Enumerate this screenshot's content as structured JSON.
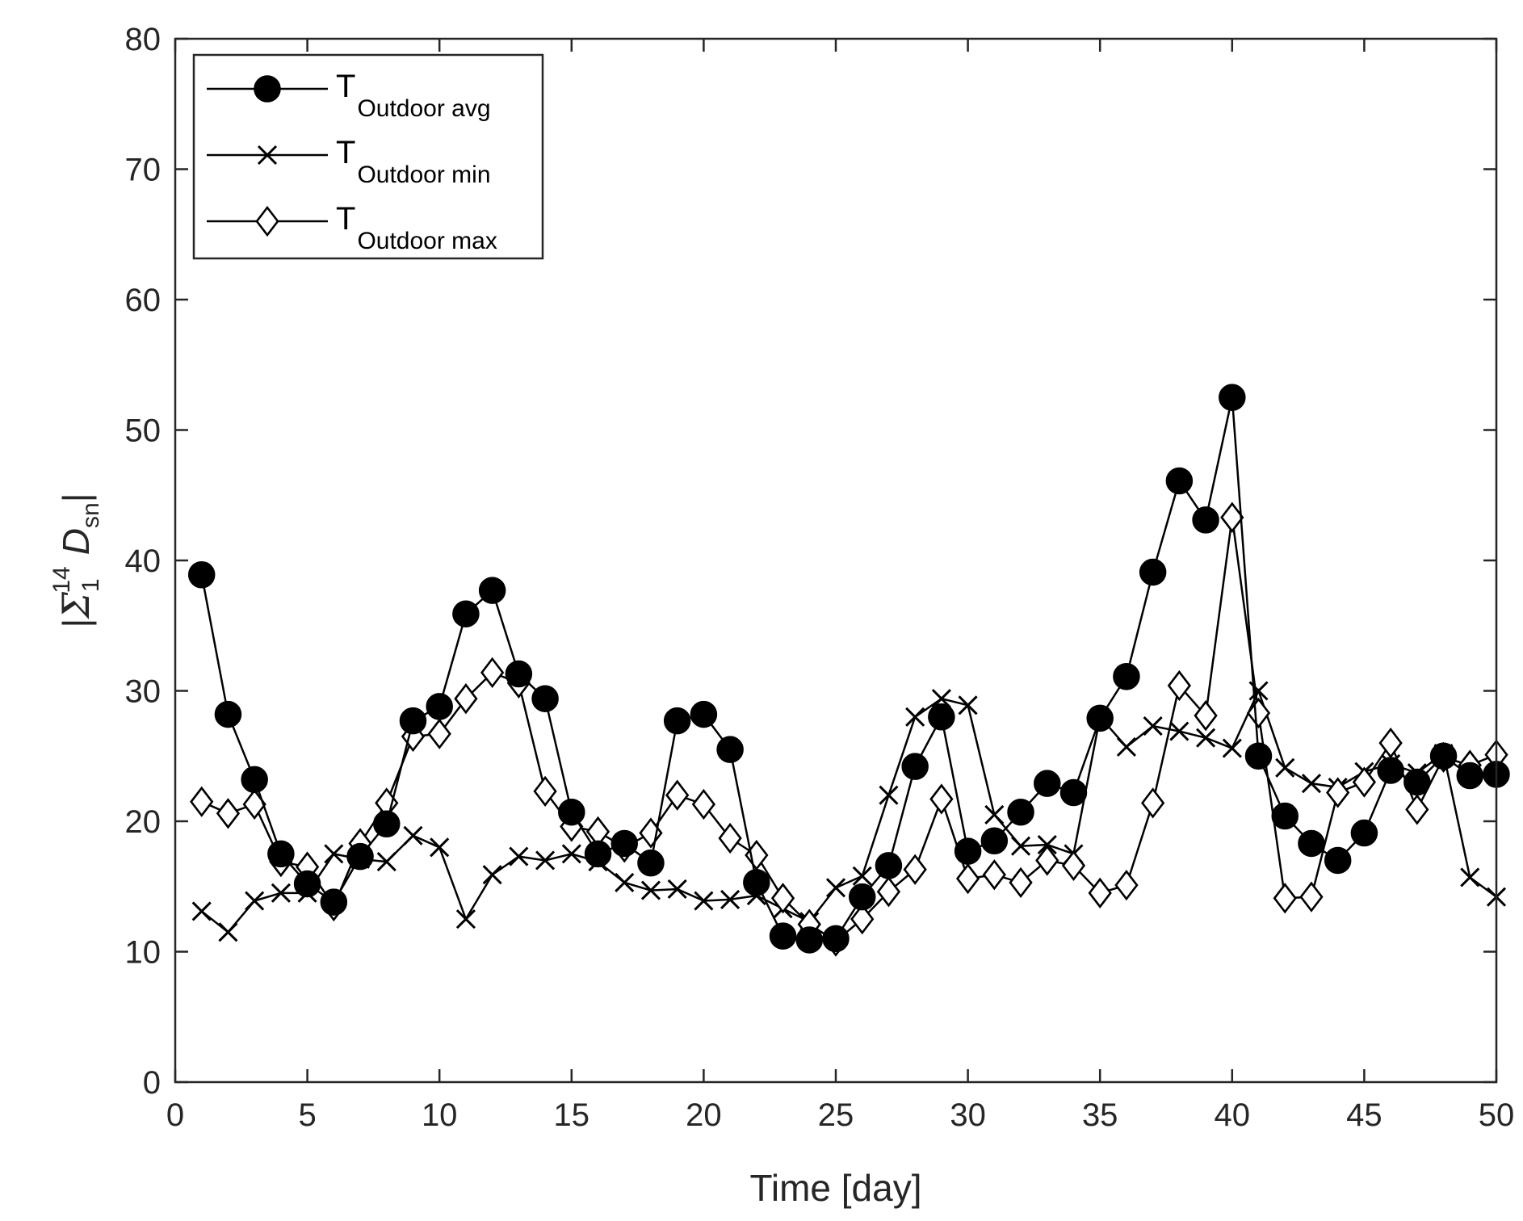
{
  "chart_data": {
    "type": "line",
    "title": "",
    "xlabel": "Time [day]",
    "ylabel_parts": {
      "bar_left": "|",
      "sigma": "Σ",
      "sub": "1",
      "sup": "14",
      "var": "D",
      "var_sub": "sn",
      "bar_right": "|"
    },
    "xlim": [
      0,
      50
    ],
    "ylim": [
      0,
      80
    ],
    "xticks": [
      0,
      5,
      10,
      15,
      20,
      25,
      30,
      35,
      40,
      45,
      50
    ],
    "yticks": [
      0,
      10,
      20,
      30,
      40,
      50,
      60,
      70,
      80
    ],
    "grid": false,
    "legend_position": "top-left",
    "x": [
      1,
      2,
      3,
      4,
      5,
      6,
      7,
      8,
      9,
      10,
      11,
      12,
      13,
      14,
      15,
      16,
      17,
      18,
      19,
      20,
      21,
      22,
      23,
      24,
      25,
      26,
      27,
      28,
      29,
      30,
      31,
      32,
      33,
      34,
      35,
      36,
      37,
      38,
      39,
      40,
      41,
      42,
      43,
      44,
      45,
      46,
      47,
      48,
      49,
      50
    ],
    "series": [
      {
        "name": "Outdoor avg",
        "legend_main": "T",
        "legend_sub": "Outdoor avg",
        "marker": "filled-circle",
        "values": [
          38.9,
          28.2,
          23.2,
          17.5,
          15.2,
          13.8,
          17.3,
          19.8,
          27.7,
          28.8,
          35.9,
          37.7,
          31.3,
          29.4,
          20.7,
          17.5,
          18.3,
          16.8,
          27.7,
          28.2,
          25.5,
          15.3,
          11.2,
          10.9,
          11.0,
          14.2,
          16.6,
          24.2,
          28.0,
          17.7,
          18.5,
          20.7,
          22.9,
          22.2,
          27.9,
          31.1,
          39.1,
          46.1,
          43.1,
          52.5,
          25.0,
          20.4,
          18.3,
          17.0,
          19.1,
          23.9,
          23.0,
          25.0,
          23.5,
          23.6
        ]
      },
      {
        "name": "Outdoor min",
        "legend_main": "T",
        "legend_sub": "Outdoor min",
        "marker": "x",
        "values": [
          13.1,
          11.5,
          13.9,
          14.5,
          14.5,
          17.5,
          17.1,
          16.9,
          18.9,
          18.0,
          12.5,
          15.9,
          17.3,
          17.0,
          17.5,
          16.9,
          15.3,
          14.7,
          14.8,
          13.9,
          14.0,
          14.3,
          13.3,
          12.3,
          14.9,
          15.8,
          22.0,
          28.0,
          29.4,
          28.9,
          20.5,
          18.1,
          18.2,
          17.5,
          28.0,
          25.7,
          27.3,
          26.9,
          26.4,
          25.6,
          30.0,
          24.1,
          22.9,
          22.6,
          23.8,
          24.4,
          23.7,
          25.2,
          15.7,
          14.2
        ]
      },
      {
        "name": "Outdoor max",
        "legend_main": "T",
        "legend_sub": "Outdoor max",
        "marker": "open-diamond",
        "values": [
          21.5,
          20.6,
          21.3,
          16.9,
          16.5,
          13.5,
          18.3,
          21.4,
          26.5,
          26.7,
          29.4,
          31.4,
          30.6,
          22.3,
          19.6,
          19.2,
          18.0,
          19.1,
          22.0,
          21.3,
          18.7,
          17.4,
          14.1,
          12.1,
          10.8,
          12.5,
          14.6,
          16.3,
          21.7,
          15.6,
          15.9,
          15.3,
          17.0,
          16.6,
          14.5,
          15.1,
          21.4,
          30.4,
          28.1,
          43.3,
          28.3,
          14.1,
          14.2,
          22.2,
          23.0,
          26.0,
          20.9,
          24.9,
          24.3,
          25.1
        ]
      }
    ]
  }
}
